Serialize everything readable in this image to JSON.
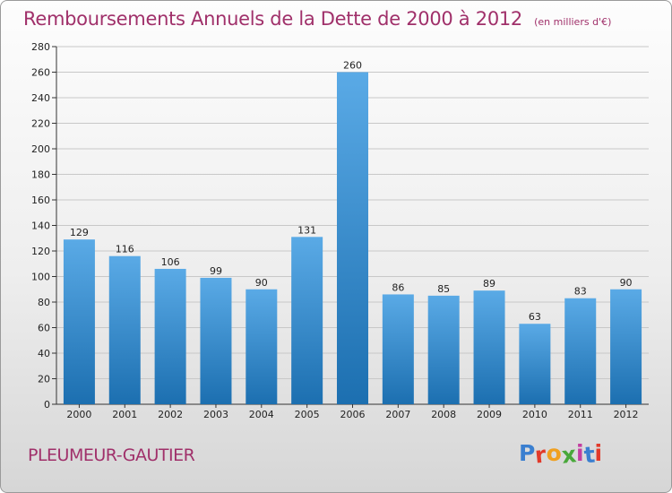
{
  "header": {
    "title": "Remboursements Annuels de la Dette de 2000 à 2012",
    "subtitle": "(en milliers d'€)"
  },
  "footer": {
    "commune": "PLEUMEUR-GAUTIER",
    "logo": {
      "letters": [
        "P",
        "r",
        "o",
        "x",
        "i",
        "t",
        "i"
      ],
      "colors": [
        "#3a7fd0",
        "#e23a2a",
        "#f0a020",
        "#49a83a",
        "#c33ea0",
        "#3a7fd0",
        "#e23a2a"
      ]
    }
  },
  "colors": {
    "bar_top": "#5aaae6",
    "bar_bottom": "#1c6fb0",
    "title": "#a0306a"
  },
  "chart_data": {
    "type": "bar",
    "categories": [
      "2000",
      "2001",
      "2002",
      "2003",
      "2004",
      "2005",
      "2006",
      "2007",
      "2008",
      "2009",
      "2010",
      "2011",
      "2012"
    ],
    "values": [
      129,
      116,
      106,
      99,
      90,
      131,
      260,
      86,
      85,
      89,
      63,
      83,
      90
    ],
    "yticks": [
      "0",
      "20",
      "40",
      "60",
      "80",
      "100",
      "120",
      "140",
      "160",
      "180",
      "200",
      "220",
      "240",
      "260",
      "280"
    ],
    "ylim": [
      0,
      280
    ],
    "grid": "horizontal"
  }
}
